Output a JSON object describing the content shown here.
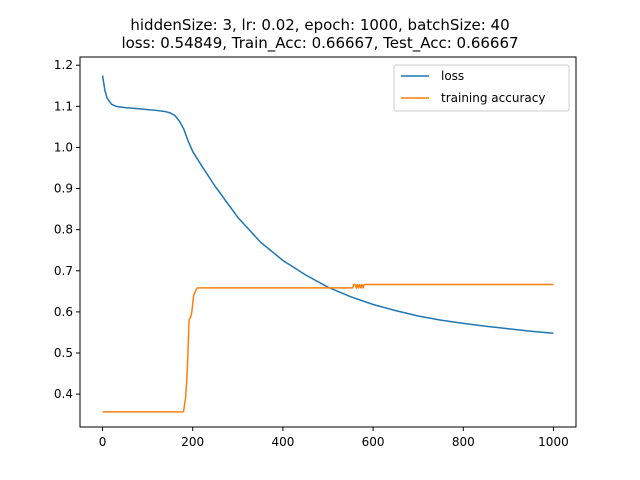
{
  "chart_data": {
    "type": "line",
    "title_line1": "hiddenSize: 3, lr: 0.02, epoch: 1000, batchSize: 40",
    "title_line2": "loss: 0.54849, Train_Acc: 0.66667, Test_Acc: 0.66667",
    "xlabel": "",
    "ylabel": "",
    "xlim": [
      -50,
      1050
    ],
    "ylim": [
      0.32,
      1.22
    ],
    "xticks": [
      0,
      200,
      400,
      600,
      800,
      1000
    ],
    "yticks": [
      0.4,
      0.5,
      0.6,
      0.7,
      0.8,
      0.9,
      1.0,
      1.1,
      1.2
    ],
    "legend_position": "top-right",
    "grid": false,
    "series": [
      {
        "name": "loss",
        "color": "#1f77b4",
        "x": [
          0,
          5,
          10,
          20,
          30,
          50,
          80,
          100,
          120,
          140,
          150,
          160,
          170,
          180,
          190,
          200,
          220,
          250,
          300,
          350,
          400,
          450,
          500,
          550,
          600,
          650,
          700,
          750,
          800,
          850,
          900,
          950,
          1000
        ],
        "y": [
          1.175,
          1.14,
          1.12,
          1.105,
          1.1,
          1.097,
          1.094,
          1.092,
          1.09,
          1.087,
          1.084,
          1.078,
          1.065,
          1.045,
          1.015,
          0.99,
          0.955,
          0.905,
          0.83,
          0.77,
          0.725,
          0.69,
          0.66,
          0.637,
          0.618,
          0.603,
          0.59,
          0.58,
          0.572,
          0.565,
          0.559,
          0.553,
          0.548
        ]
      },
      {
        "name": "training accuracy",
        "color": "#ff7f0e",
        "x": [
          0,
          178,
          180,
          182,
          184,
          186,
          188,
          190,
          192,
          194,
          196,
          198,
          200,
          202,
          204,
          206,
          208,
          210,
          212,
          214,
          555,
          557,
          560,
          563,
          565,
          568,
          570,
          573,
          575,
          578,
          580,
          1000
        ],
        "y": [
          0.3567,
          0.3567,
          0.36,
          0.375,
          0.39,
          0.42,
          0.46,
          0.52,
          0.58,
          0.585,
          0.59,
          0.6,
          0.62,
          0.64,
          0.645,
          0.65,
          0.655,
          0.658,
          0.6583,
          0.6583,
          0.6583,
          0.6667,
          0.6667,
          0.6583,
          0.6667,
          0.6583,
          0.6667,
          0.6583,
          0.6667,
          0.6583,
          0.6667,
          0.6667
        ]
      }
    ]
  }
}
